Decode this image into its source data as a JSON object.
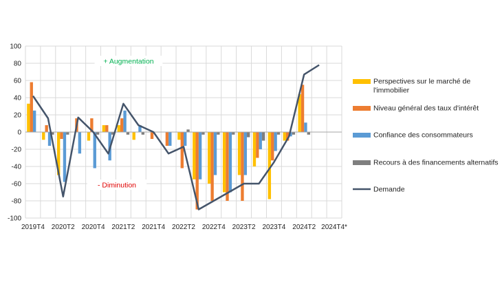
{
  "chart_data": {
    "type": "bar",
    "ylim": [
      -100,
      100
    ],
    "yticks": [
      -100,
      -80,
      -60,
      -40,
      -20,
      0,
      20,
      40,
      60,
      80,
      100
    ],
    "categories": [
      "2019T4",
      "2020T1",
      "2020T2",
      "2020T3",
      "2020T4",
      "2021T1",
      "2021T2",
      "2021T3",
      "2021T4",
      "2022T1",
      "2022T2",
      "2022T3",
      "2022T4",
      "2023T1",
      "2023T2",
      "2023T3",
      "2023T4",
      "2024T1",
      "2024T2",
      "2024T3",
      "2024T4*"
    ],
    "xtick_labels": [
      "2019T4",
      "2020T2",
      "2020T4",
      "2021T2",
      "2021T4",
      "2022T2",
      "2022T4",
      "2023T2",
      "2023T4",
      "2024T2",
      "2024T4*"
    ],
    "series": [
      {
        "name": "Perspectives sur le marché de l'immobilier",
        "type": "bar",
        "color": "#FFC000",
        "values": [
          33,
          -9,
          -50,
          0,
          -10,
          8,
          8,
          -9,
          0,
          0,
          -9,
          -55,
          -60,
          -70,
          -50,
          -40,
          -78,
          -10,
          44,
          0,
          0
        ]
      },
      {
        "name": "Niveau général des taux d'intérêt",
        "type": "bar",
        "color": "#ED7D31",
        "values": [
          58,
          8,
          -8,
          16,
          16,
          8,
          16,
          0,
          -8,
          -16,
          -42,
          -90,
          -80,
          -80,
          -80,
          -30,
          -33,
          -10,
          55,
          0,
          0
        ]
      },
      {
        "name": "Confiance des consommateurs",
        "type": "bar",
        "color": "#5B9BD5",
        "values": [
          25,
          -16,
          -58,
          -25,
          -42,
          -33,
          25,
          8,
          0,
          -16,
          -16,
          -55,
          -50,
          -70,
          -50,
          -20,
          -22,
          -5,
          11,
          0,
          0
        ]
      },
      {
        "name": "Recours à des financements alternatifs",
        "type": "bar",
        "color": "#7F7F7F",
        "values": [
          0,
          -3,
          -3,
          0,
          -3,
          -3,
          -3,
          -3,
          0,
          0,
          3,
          -3,
          -3,
          -3,
          -6,
          -10,
          -3,
          -3,
          -3,
          0,
          0
        ]
      },
      {
        "name": "Demande",
        "type": "line",
        "color": "#44546A",
        "values": [
          42,
          16,
          -75,
          17,
          0,
          -25,
          33,
          8,
          0,
          -25,
          -17,
          -90,
          -80,
          -70,
          -60,
          -60,
          -35,
          -5,
          67,
          78,
          null
        ]
      }
    ],
    "annotations": [
      {
        "text": "+ Augmentation",
        "color": "#00B050"
      },
      {
        "text": "- Diminution",
        "color": "#E00000"
      }
    ],
    "legend_position": "right"
  }
}
